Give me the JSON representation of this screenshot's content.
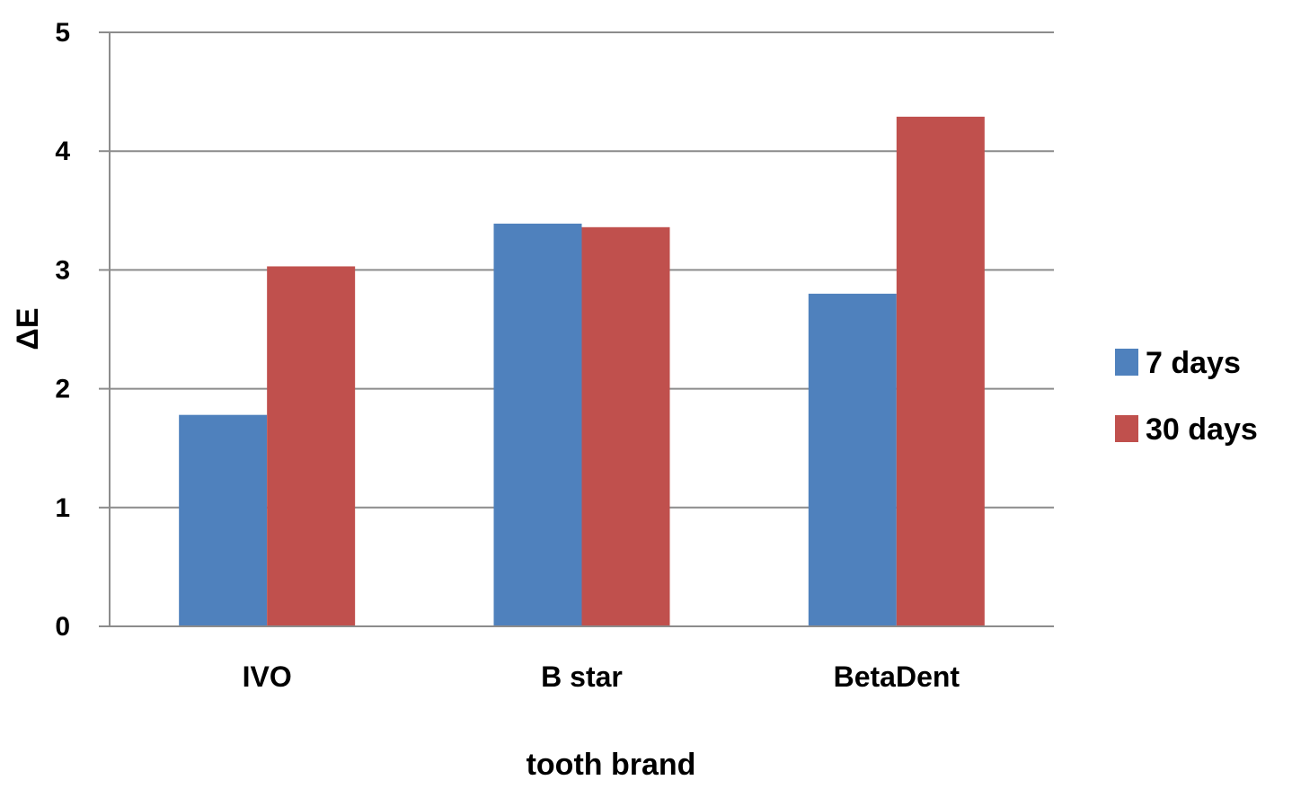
{
  "chart_data": {
    "type": "bar",
    "categories": [
      "IVO",
      "B star",
      "BetaDent"
    ],
    "series": [
      {
        "name": "7 days",
        "color": "#4F81BD",
        "values": [
          1.78,
          3.39,
          2.8
        ]
      },
      {
        "name": "30 days",
        "color": "#C0504D",
        "values": [
          3.03,
          3.36,
          4.29
        ]
      }
    ],
    "xlabel": "tooth brand",
    "ylabel": "ΔE",
    "ylim": [
      0,
      5
    ],
    "yticks": [
      "0",
      "1",
      "2",
      "3",
      "4",
      "5"
    ],
    "grid": true,
    "legend_position": "right"
  }
}
